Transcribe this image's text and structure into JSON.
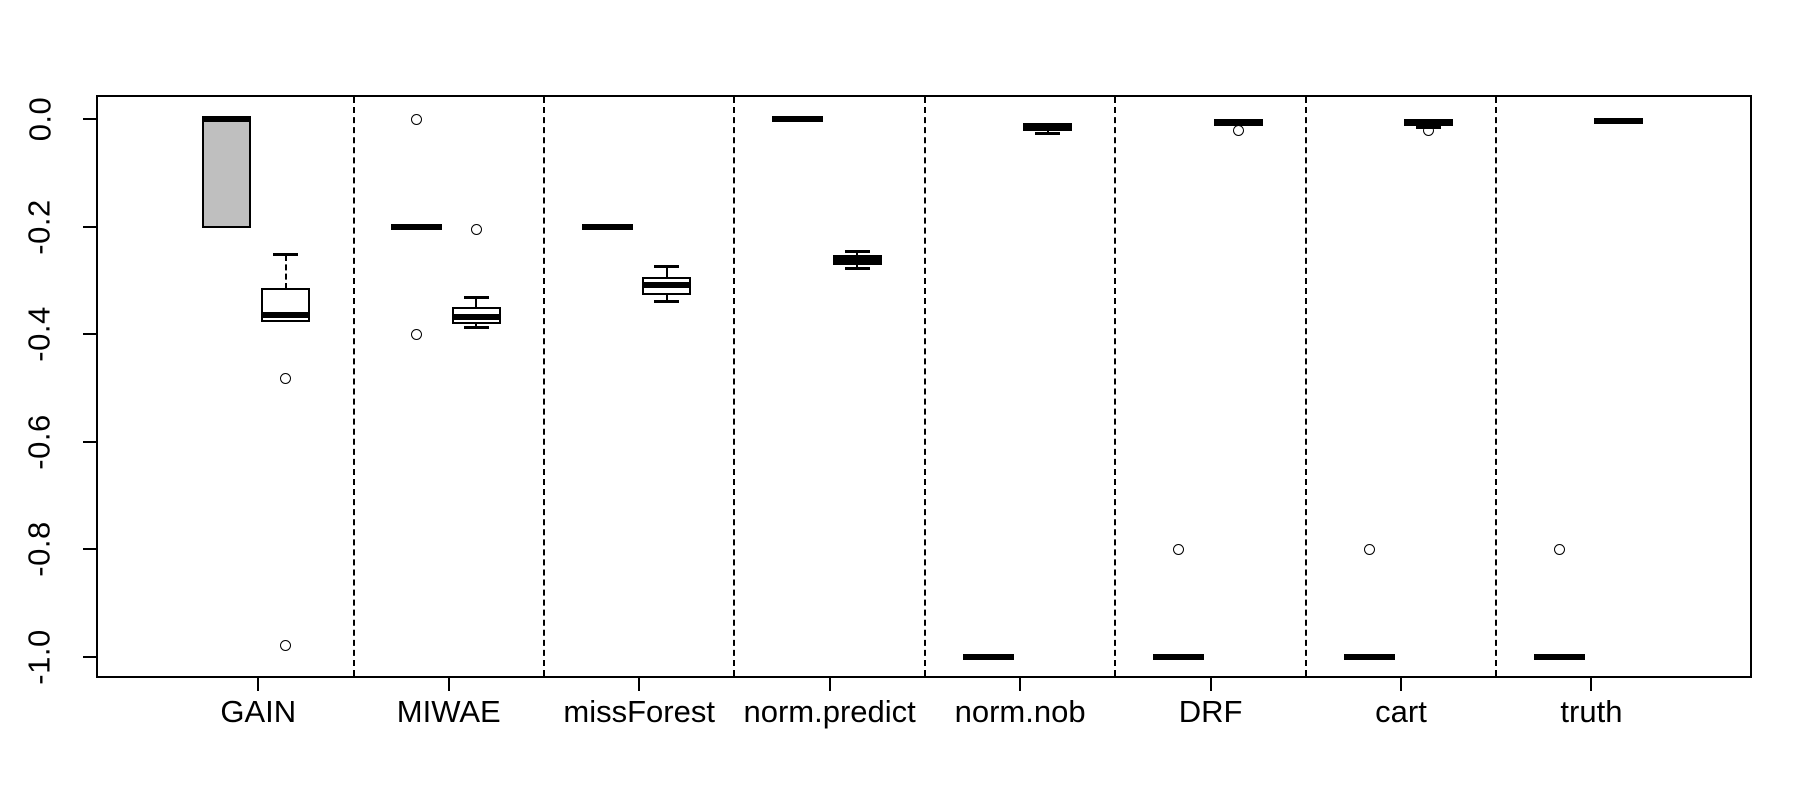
{
  "figure": {
    "kind": "R base-graphics grouped boxplot",
    "background": "#ffffff",
    "stroke_color": "#000000",
    "title": "",
    "x_axis_title": "",
    "y_axis_title": ""
  },
  "chart_data": {
    "type": "boxplot",
    "orientation": "vertical",
    "grid": false,
    "categories": [
      "GAIN",
      "MIWAE",
      "missForest",
      "norm.predict",
      "norm.nob",
      "DRF",
      "cart",
      "truth"
    ],
    "y_ticks": {
      "values": [
        0.0,
        -0.2,
        -0.4,
        -0.6,
        -0.8,
        -1.0
      ],
      "labels": [
        "0.0",
        "-0.2",
        "-0.4",
        "-0.6",
        "-0.8",
        "-1.0"
      ]
    },
    "ylim_drawn": [
      0.04,
      -1.036
    ],
    "boxes_per_category": 2,
    "separators": {
      "style": "dashed",
      "between_groups": true
    },
    "colors": {
      "gain_left_fill": "#bfbfbf",
      "default_fill": "#ffffff",
      "stroke": "#000000"
    },
    "groups": [
      {
        "category": "GAIN",
        "boxes": [
          {
            "position": "left",
            "fill": "#bfbfbf",
            "median": 0.0,
            "q1": -0.2,
            "q3": 0.0,
            "whisker_low": -0.2,
            "whisker_high": 0.0,
            "outliers": []
          },
          {
            "position": "right",
            "fill": "#ffffff",
            "median": -0.365,
            "q1": -0.375,
            "q3": -0.317,
            "whisker_low": -0.375,
            "whisker_high": -0.253,
            "outliers": [
              -0.482,
              -0.98
            ]
          }
        ]
      },
      {
        "category": "MIWAE",
        "boxes": [
          {
            "position": "left",
            "fill": "#ffffff",
            "median": -0.2,
            "q1": -0.2,
            "q3": -0.2,
            "whisker_low": -0.2,
            "whisker_high": -0.2,
            "outliers": [
              0.0,
              -0.4
            ]
          },
          {
            "position": "right",
            "fill": "#ffffff",
            "median": -0.368,
            "q1": -0.379,
            "q3": -0.351,
            "whisker_low": -0.387,
            "whisker_high": -0.332,
            "outliers": [
              -0.206
            ]
          }
        ]
      },
      {
        "category": "missForest",
        "boxes": [
          {
            "position": "left",
            "fill": "#ffffff",
            "median": -0.2,
            "q1": -0.2,
            "q3": -0.2,
            "whisker_low": -0.2,
            "whisker_high": -0.2,
            "outliers": []
          },
          {
            "position": "right",
            "fill": "#ffffff",
            "median": -0.309,
            "q1": -0.326,
            "q3": -0.296,
            "whisker_low": -0.34,
            "whisker_high": -0.275,
            "outliers": []
          }
        ]
      },
      {
        "category": "norm.predict",
        "boxes": [
          {
            "position": "left",
            "fill": "#ffffff",
            "median": 0.0,
            "q1": 0.0,
            "q3": 0.0,
            "whisker_low": 0.0,
            "whisker_high": 0.0,
            "outliers": []
          },
          {
            "position": "right",
            "fill": "#ffffff",
            "median": -0.262,
            "q1": -0.27,
            "q3": -0.254,
            "whisker_low": -0.278,
            "whisker_high": -0.247,
            "outliers": []
          }
        ]
      },
      {
        "category": "norm.nob",
        "boxes": [
          {
            "position": "left",
            "fill": "#ffffff",
            "median": -1.0,
            "q1": -1.0,
            "q3": -1.0,
            "whisker_low": -1.0,
            "whisker_high": -1.0,
            "outliers": []
          },
          {
            "position": "right",
            "fill": "#ffffff",
            "median": -0.015,
            "q1": -0.021,
            "q3": -0.009,
            "whisker_low": -0.027,
            "whisker_high": -0.009,
            "outliers": []
          }
        ]
      },
      {
        "category": "DRF",
        "boxes": [
          {
            "position": "left",
            "fill": "#ffffff",
            "median": -1.0,
            "q1": -1.0,
            "q3": -1.0,
            "whisker_low": -1.0,
            "whisker_high": -1.0,
            "outliers": [
              -0.8
            ]
          },
          {
            "position": "right",
            "fill": "#ffffff",
            "median": -0.007,
            "q1": -0.012,
            "q3": -0.002,
            "whisker_low": -0.012,
            "whisker_high": -0.002,
            "outliers": [
              -0.021
            ]
          }
        ]
      },
      {
        "category": "cart",
        "boxes": [
          {
            "position": "left",
            "fill": "#ffffff",
            "median": -1.0,
            "q1": -1.0,
            "q3": -1.0,
            "whisker_low": -1.0,
            "whisker_high": -1.0,
            "outliers": [
              -0.8
            ]
          },
          {
            "position": "right",
            "fill": "#ffffff",
            "median": -0.006,
            "q1": -0.011,
            "q3": -0.002,
            "whisker_low": -0.015,
            "whisker_high": -0.002,
            "outliers": [
              -0.021
            ]
          }
        ]
      },
      {
        "category": "truth",
        "boxes": [
          {
            "position": "left",
            "fill": "#ffffff",
            "median": -1.0,
            "q1": -1.0,
            "q3": -1.0,
            "whisker_low": -1.0,
            "whisker_high": -1.0,
            "outliers": [
              -0.8
            ]
          },
          {
            "position": "right",
            "fill": "#ffffff",
            "median": -0.004,
            "q1": -0.007,
            "q3": -0.001,
            "whisker_low": -0.007,
            "whisker_high": -0.001,
            "outliers": []
          }
        ]
      }
    ]
  }
}
